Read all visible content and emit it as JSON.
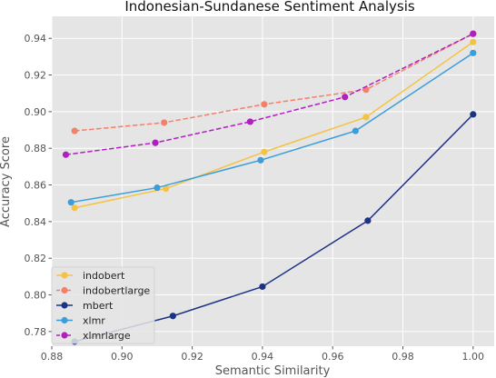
{
  "chart_data": {
    "type": "line",
    "title": "Indonesian-Sundanese Sentiment Analysis",
    "xlabel": "Semantic Similarity",
    "ylabel": "Accuracy Score",
    "xlim": [
      0.88,
      1.006
    ],
    "ylim": [
      0.772,
      0.952
    ],
    "xticks": [
      0.88,
      0.9,
      0.92,
      0.94,
      0.96,
      0.98,
      1.0
    ],
    "xtick_labels": [
      "0.88",
      "0.90",
      "0.92",
      "0.94",
      "0.96",
      "0.98",
      "1.00"
    ],
    "yticks": [
      0.78,
      0.8,
      0.82,
      0.84,
      0.86,
      0.88,
      0.9,
      0.92,
      0.94
    ],
    "ytick_labels": [
      "0.78",
      "0.80",
      "0.82",
      "0.84",
      "0.86",
      "0.88",
      "0.90",
      "0.92",
      "0.94"
    ],
    "grid": true,
    "legend_position": "lower-left",
    "background_color": "#E5E5E5",
    "grid_color": "#FFFFFF",
    "series": [
      {
        "name": "indobert",
        "color": "#F5C343",
        "dash": "solid",
        "x": [
          0.8865,
          0.9125,
          0.9405,
          0.9695,
          1.0
        ],
        "y": [
          0.8475,
          0.858,
          0.878,
          0.897,
          0.938
        ]
      },
      {
        "name": "indobertlarge",
        "color": "#F2806A",
        "dash": "dashed",
        "x": [
          0.8865,
          0.912,
          0.9405,
          0.9695,
          1.0
        ],
        "y": [
          0.8895,
          0.894,
          0.904,
          0.912,
          0.9425
        ]
      },
      {
        "name": "mbert",
        "color": "#1C3385",
        "dash": "solid",
        "x": [
          0.8865,
          0.9145,
          0.94,
          0.97,
          1.0
        ],
        "y": [
          0.7745,
          0.7885,
          0.8045,
          0.8405,
          0.8985
        ]
      },
      {
        "name": "xlmr",
        "color": "#3A9DDC",
        "dash": "solid",
        "x": [
          0.8855,
          0.91,
          0.9395,
          0.9665,
          1.0
        ],
        "y": [
          0.8505,
          0.8585,
          0.8735,
          0.8895,
          0.932
        ]
      },
      {
        "name": "xlmrlarge",
        "color": "#B020C0",
        "dash": "dashed",
        "x": [
          0.884,
          0.9095,
          0.9365,
          0.9635,
          1.0
        ],
        "y": [
          0.8765,
          0.883,
          0.8945,
          0.908,
          0.9425
        ]
      }
    ]
  }
}
